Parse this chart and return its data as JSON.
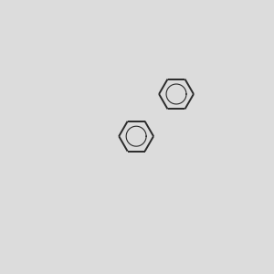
{
  "background_color": "#dcdcdc",
  "bond_color": "#2a2a2a",
  "atom_colors": {
    "Br": "#b85c00",
    "F": "#008800",
    "O": "#cc0000",
    "NH": "#2222cc",
    "N": "#2222cc",
    "S": "#cccc00"
  },
  "figsize": [
    3.0,
    3.0
  ],
  "dpi": 100
}
